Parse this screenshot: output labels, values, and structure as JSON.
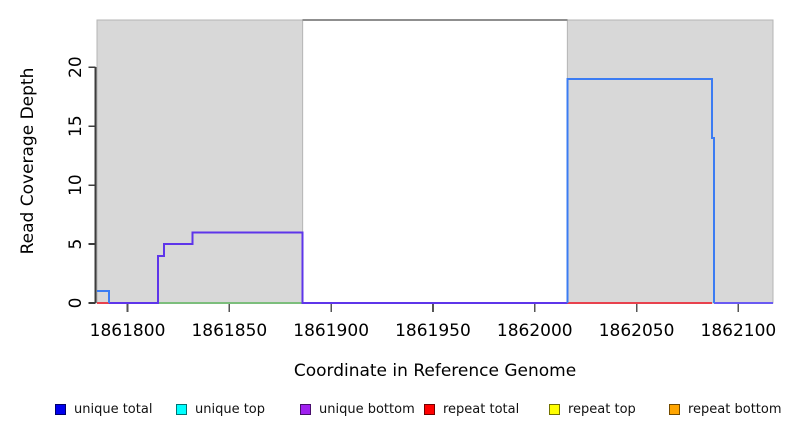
{
  "axes": {
    "x_title": "Coordinate in Reference Genome",
    "y_title": "Read Coverage Depth"
  },
  "legend": {
    "items": [
      {
        "label": "unique total",
        "color": "#0000ee"
      },
      {
        "label": "unique top",
        "color": "#00ffff"
      },
      {
        "label": "unique bottom",
        "color": "#a020f0"
      },
      {
        "label": "repeat total",
        "color": "#ff0000"
      },
      {
        "label": "repeat top",
        "color": "#ffff00"
      },
      {
        "label": "repeat bottom",
        "color": "#ffa500"
      }
    ]
  },
  "chart_data": {
    "type": "line",
    "subtype": "step-coverage",
    "xlabel": "Coordinate in Reference Genome",
    "ylabel": "Read Coverage Depth",
    "xlim": [
      1861785,
      1862117
    ],
    "ylim": [
      0,
      24
    ],
    "x_ticks": [
      1861800,
      1861850,
      1861900,
      1861950,
      1862000,
      1862050,
      1862100
    ],
    "y_ticks": [
      0,
      5,
      10,
      15,
      20
    ],
    "grid": false,
    "legend_position": "bottom",
    "shaded_regions": [
      {
        "name": "repeat-region-left",
        "x0": 1861785,
        "x1": 1861886,
        "fill": "#d8d8d8",
        "border": "#b5b5b5"
      },
      {
        "name": "repeat-region-right",
        "x0": 1862016,
        "x1": 1862117,
        "fill": "#d8d8d8",
        "border": "#b5b5b5"
      }
    ],
    "series": [
      {
        "name": "repeat total (left baseline)",
        "color": "#e8414d",
        "points": [
          [
            1861785,
            0
          ],
          [
            1861791,
            0
          ]
        ]
      },
      {
        "name": "repeat total (right baseline)",
        "color": "#e8414d",
        "points": [
          [
            1862016,
            0
          ],
          [
            1862087,
            0
          ]
        ]
      },
      {
        "name": "top-strand baseline (green)",
        "color": "#7cbe7c",
        "points": [
          [
            1861815,
            0
          ],
          [
            1861886,
            0
          ]
        ]
      },
      {
        "name": "unique bottom",
        "color": "#5e35ea",
        "points": [
          [
            1861791,
            0
          ],
          [
            1861815,
            0
          ],
          [
            1861815,
            4
          ],
          [
            1861818,
            4
          ],
          [
            1861818,
            5
          ],
          [
            1861832,
            5
          ],
          [
            1861832,
            6
          ],
          [
            1861886,
            6
          ],
          [
            1861886,
            0
          ],
          [
            1862016,
            0
          ]
        ]
      },
      {
        "name": "unique bottom (right baseline)",
        "color": "#6a5af2",
        "points": [
          [
            1862088,
            0
          ],
          [
            1862117,
            0
          ]
        ]
      },
      {
        "name": "unique total (left step)",
        "color": "#3b7cf3",
        "points": [
          [
            1861785,
            1
          ],
          [
            1861791,
            1
          ],
          [
            1861791,
            0
          ]
        ]
      },
      {
        "name": "unique total (right block)",
        "color": "#3b7cf3",
        "points": [
          [
            1862016,
            0
          ],
          [
            1862016,
            19
          ],
          [
            1862087,
            19
          ],
          [
            1862087,
            14
          ],
          [
            1862088,
            14
          ],
          [
            1862088,
            0
          ]
        ]
      },
      {
        "name": "clipped coverage at top",
        "color": "#8f8f8f",
        "points": [
          [
            1861886,
            24
          ],
          [
            1862016,
            24
          ]
        ]
      }
    ],
    "axis_color": "#3c3c3c",
    "tick_color": "#555555",
    "label_color": "#000000"
  }
}
